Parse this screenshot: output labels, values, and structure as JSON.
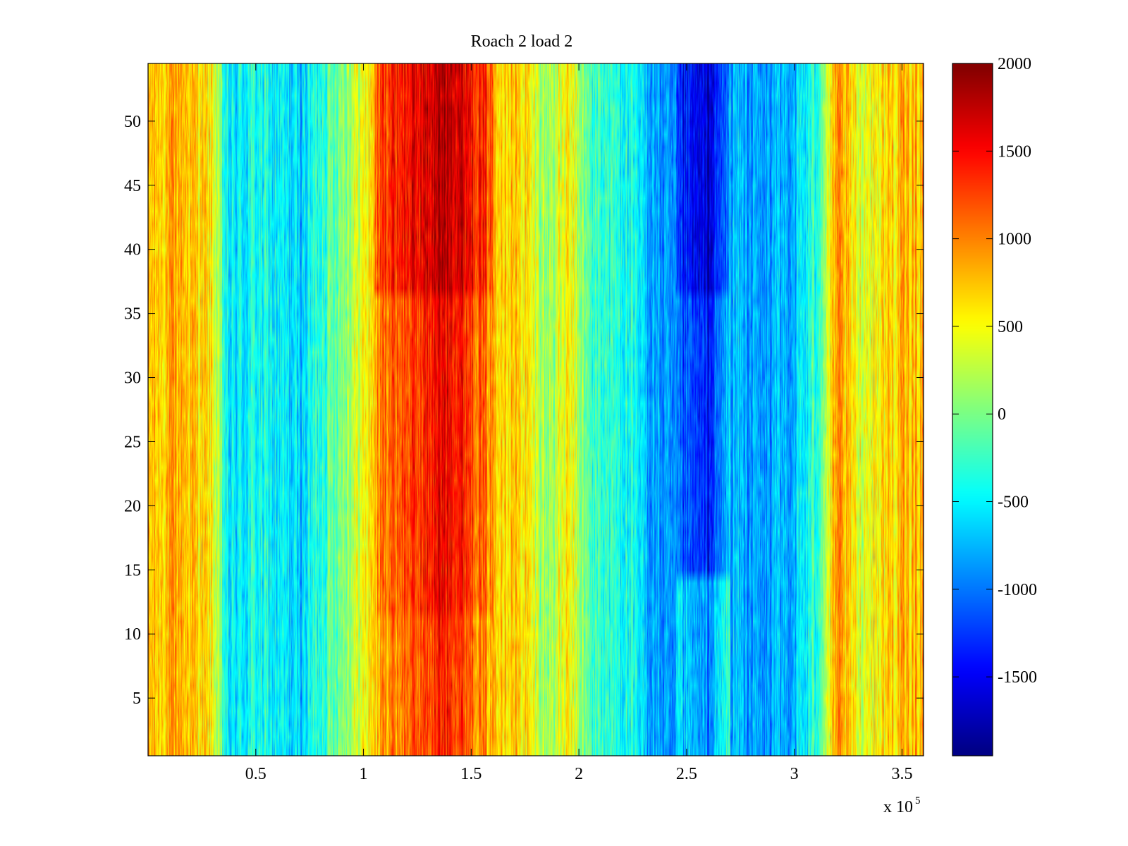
{
  "chart_data": {
    "type": "heatmap",
    "title": "Roach 2 load 2",
    "xlabel": "",
    "ylabel": "",
    "x_exponent_label": "x 10",
    "x_exponent_power": "5",
    "xlim": [
      0,
      3.6
    ],
    "ylim": [
      0.5,
      54.5
    ],
    "x_ticks": [
      0.5,
      1,
      1.5,
      2,
      2.5,
      3,
      3.5
    ],
    "x_tick_labels": [
      "0.5",
      "1",
      "1.5",
      "2",
      "2.5",
      "3",
      "3.5"
    ],
    "y_ticks": [
      5,
      10,
      15,
      20,
      25,
      30,
      35,
      40,
      45,
      50
    ],
    "y_tick_labels": [
      "5",
      "10",
      "15",
      "20",
      "25",
      "30",
      "35",
      "40",
      "45",
      "50"
    ],
    "rows": 54,
    "colormap": "jet",
    "clim": [
      -1950,
      2000
    ],
    "colorbar_ticks": [
      2000,
      1500,
      1000,
      500,
      0,
      -500,
      -1000,
      -1500
    ],
    "colorbar_tick_labels": [
      "2000",
      "1500",
      "1000",
      "500",
      "0",
      "-500",
      "-1000",
      "-1500"
    ],
    "column_profile": [
      {
        "x": 0.0,
        "value": 700
      },
      {
        "x": 0.15,
        "value": 850
      },
      {
        "x": 0.3,
        "value": 550
      },
      {
        "x": 0.37,
        "value": -600
      },
      {
        "x": 0.5,
        "value": -400
      },
      {
        "x": 0.7,
        "value": -650
      },
      {
        "x": 0.85,
        "value": -100
      },
      {
        "x": 1.0,
        "value": 450
      },
      {
        "x": 1.1,
        "value": 1100
      },
      {
        "x": 1.25,
        "value": 1300
      },
      {
        "x": 1.4,
        "value": 1600
      },
      {
        "x": 1.5,
        "value": 1300
      },
      {
        "x": 1.6,
        "value": 900
      },
      {
        "x": 1.75,
        "value": 600
      },
      {
        "x": 1.85,
        "value": 100
      },
      {
        "x": 1.95,
        "value": 500
      },
      {
        "x": 2.05,
        "value": -200
      },
      {
        "x": 2.2,
        "value": -350
      },
      {
        "x": 2.35,
        "value": -800
      },
      {
        "x": 2.5,
        "value": -1200
      },
      {
        "x": 2.6,
        "value": -1400
      },
      {
        "x": 2.7,
        "value": -700
      },
      {
        "x": 2.85,
        "value": -900
      },
      {
        "x": 3.0,
        "value": -700
      },
      {
        "x": 3.1,
        "value": -300
      },
      {
        "x": 3.2,
        "value": 900
      },
      {
        "x": 3.3,
        "value": 400
      },
      {
        "x": 3.45,
        "value": 700
      },
      {
        "x": 3.6,
        "value": 800
      }
    ]
  }
}
